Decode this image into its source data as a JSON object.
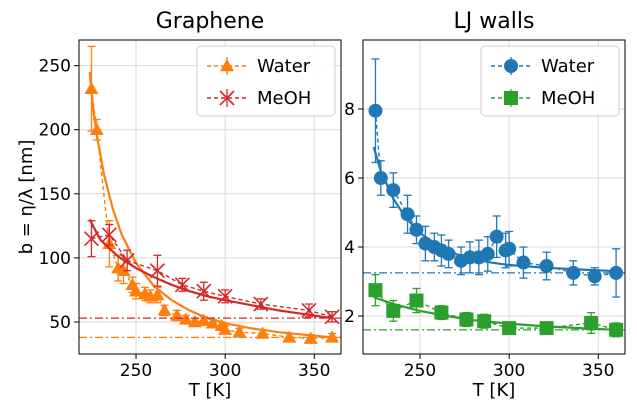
{
  "colors": {
    "water_graphene": "#ff7f0e",
    "meoh_graphene": "#d62728",
    "water_lj": "#1f77b4",
    "meoh_lj": "#2ca02c",
    "grid": "#d9d9d9"
  },
  "chart_data": [
    {
      "type": "scatter",
      "title": "Graphene",
      "xlabel": "T [K]",
      "ylabel": "b = η/λ [nm]",
      "xlim": [
        218,
        365
      ],
      "ylim": [
        25,
        270
      ],
      "xticks": [
        250,
        300,
        350
      ],
      "yticks": [
        50,
        100,
        150,
        200,
        250
      ],
      "grid": true,
      "legend_position": "top-right",
      "series": [
        {
          "name": "Water",
          "marker": "triangle",
          "color": "#ff7f0e",
          "x": [
            225,
            228,
            235,
            240,
            243,
            248,
            250,
            255,
            258,
            262,
            266,
            273,
            278,
            283,
            288,
            293,
            298,
            300,
            308,
            321,
            336,
            348,
            360
          ],
          "y": [
            232,
            200,
            111,
            92,
            90,
            79,
            74,
            72,
            70,
            71,
            59,
            55,
            52,
            50,
            51,
            49,
            47,
            44,
            42,
            41,
            38,
            37,
            38
          ],
          "err": [
            33,
            8,
            18,
            10,
            10,
            6,
            6,
            5,
            5,
            6,
            4,
            4,
            3,
            3,
            3,
            3,
            3,
            3,
            3,
            3,
            3,
            3,
            3
          ],
          "fit": [
            [
              224,
              245
            ],
            [
              226,
              215
            ],
            [
              228,
              196
            ],
            [
              232,
              165
            ],
            [
              237,
              138
            ],
            [
              242,
              118
            ],
            [
              250,
              96
            ],
            [
              260,
              78
            ],
            [
              270,
              67
            ],
            [
              280,
              59
            ],
            [
              290,
              53
            ],
            [
              300,
              49
            ],
            [
              315,
              45
            ],
            [
              330,
              42
            ],
            [
              345,
              40
            ],
            [
              360,
              38
            ]
          ],
          "asymptote": 38
        },
        {
          "name": "MeOH",
          "marker": "x",
          "color": "#d62728",
          "x": [
            225,
            235,
            245,
            262,
            276,
            288,
            300,
            320,
            347,
            360
          ],
          "y": [
            115,
            118,
            98,
            90,
            79,
            74,
            70,
            64,
            59,
            54
          ],
          "err": [
            14,
            8,
            8,
            12,
            5,
            7,
            5,
            4,
            5,
            4
          ],
          "fit": [
            [
              224,
              130
            ],
            [
              230,
              114
            ],
            [
              240,
              101
            ],
            [
              250,
              92
            ],
            [
              260,
              85
            ],
            [
              270,
              79
            ],
            [
              280,
              74
            ],
            [
              290,
              70
            ],
            [
              300,
              67
            ],
            [
              315,
              63
            ],
            [
              330,
              59
            ],
            [
              345,
              56
            ],
            [
              360,
              53
            ]
          ],
          "asymptote": 53
        }
      ]
    },
    {
      "type": "scatter",
      "title": "LJ walls",
      "xlabel": "T [K]",
      "ylabel": "",
      "xlim": [
        218,
        365
      ],
      "ylim": [
        0.9,
        10.0
      ],
      "xticks": [
        250,
        300,
        350
      ],
      "yticks": [
        2,
        4,
        6,
        8
      ],
      "grid": true,
      "legend_position": "top-right",
      "series": [
        {
          "name": "Water",
          "marker": "circle",
          "color": "#1f77b4",
          "x": [
            225,
            228,
            235,
            243,
            248,
            253,
            258,
            262,
            266,
            273,
            278,
            283,
            288,
            293,
            298,
            300,
            308,
            321,
            336,
            348,
            360
          ],
          "y": [
            7.95,
            6.0,
            5.65,
            4.95,
            4.5,
            4.1,
            4.0,
            3.9,
            3.8,
            3.6,
            3.7,
            3.7,
            3.8,
            4.3,
            3.9,
            3.95,
            3.55,
            3.45,
            3.25,
            3.15,
            3.25
          ],
          "err": [
            1.5,
            0.5,
            0.5,
            0.55,
            0.4,
            0.5,
            0.4,
            0.45,
            0.4,
            0.4,
            0.45,
            0.5,
            0.5,
            0.6,
            0.5,
            0.5,
            0.45,
            0.4,
            0.35,
            0.25,
            0.7
          ],
          "fit": [
            [
              224,
              6.9
            ],
            [
              228,
              6.2
            ],
            [
              235,
              5.4
            ],
            [
              242,
              4.85
            ],
            [
              250,
              4.4
            ],
            [
              260,
              4.05
            ],
            [
              270,
              3.8
            ],
            [
              280,
              3.65
            ],
            [
              290,
              3.55
            ],
            [
              300,
              3.48
            ],
            [
              320,
              3.4
            ],
            [
              340,
              3.35
            ],
            [
              360,
              3.3
            ]
          ],
          "asymptote": 3.25
        },
        {
          "name": "MeOH",
          "marker": "square",
          "color": "#2ca02c",
          "x": [
            225,
            235,
            248,
            262,
            276,
            286,
            300,
            321,
            346,
            360
          ],
          "y": [
            2.75,
            2.15,
            2.45,
            2.1,
            1.9,
            1.85,
            1.65,
            1.65,
            1.8,
            1.6
          ],
          "err": [
            0.45,
            0.3,
            0.35,
            0.2,
            0.2,
            0.2,
            0.15,
            0.15,
            0.3,
            0.2
          ],
          "fit": [
            [
              224,
              2.55
            ],
            [
              235,
              2.35
            ],
            [
              250,
              2.15
            ],
            [
              265,
              2.0
            ],
            [
              280,
              1.88
            ],
            [
              300,
              1.78
            ],
            [
              320,
              1.7
            ],
            [
              340,
              1.65
            ],
            [
              360,
              1.6
            ]
          ],
          "asymptote": 1.6
        }
      ]
    }
  ]
}
